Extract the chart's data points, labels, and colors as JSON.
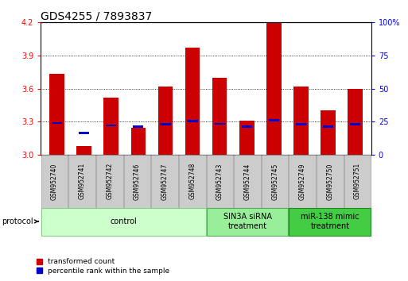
{
  "title": "GDS4255 / 7893837",
  "samples": [
    "GSM952740",
    "GSM952741",
    "GSM952742",
    "GSM952746",
    "GSM952747",
    "GSM952748",
    "GSM952743",
    "GSM952744",
    "GSM952745",
    "GSM952749",
    "GSM952750",
    "GSM952751"
  ],
  "transformed_count": [
    3.73,
    3.08,
    3.52,
    3.24,
    3.62,
    3.97,
    3.7,
    3.31,
    4.2,
    3.62,
    3.4,
    3.6
  ],
  "percentile_rank_values": [
    3.285,
    3.195,
    3.265,
    3.255,
    3.275,
    3.305,
    3.28,
    3.255,
    3.31,
    3.275,
    3.255,
    3.275
  ],
  "ymin": 3.0,
  "ymax": 4.2,
  "yticks": [
    3.0,
    3.3,
    3.6,
    3.9,
    4.2
  ],
  "y2ticks": [
    0,
    25,
    50,
    75,
    100
  ],
  "bar_color": "#cc0000",
  "percentile_color": "#0000cc",
  "bar_width": 0.55,
  "groups": [
    {
      "label": "control",
      "start": 0,
      "end": 6,
      "color": "#ccffcc",
      "edge": "#88cc88"
    },
    {
      "label": "SIN3A siRNA\ntreatment",
      "start": 6,
      "end": 9,
      "color": "#99ee99",
      "edge": "#55aa55"
    },
    {
      "label": "miR-138 mimic\ntreatment",
      "start": 9,
      "end": 12,
      "color": "#44cc44",
      "edge": "#228822"
    }
  ],
  "bg_color": "#ffffff",
  "title_fontsize": 10,
  "tick_fontsize": 7,
  "label_box_color": "#cccccc",
  "label_box_edge": "#999999"
}
